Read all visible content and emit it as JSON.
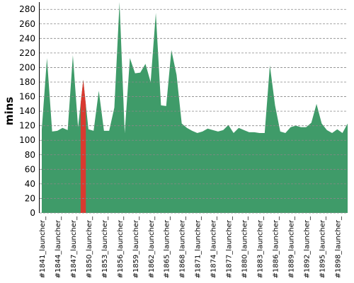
{
  "chart_data": {
    "type": "area",
    "y_label": "mins",
    "categories": [
      "#1841_launcher_",
      null,
      null,
      "#1844_launcher_",
      null,
      null,
      "#1847_launcher_",
      null,
      null,
      "#1850_launcher_",
      null,
      null,
      "#1853_launcher_",
      null,
      null,
      "#1856_launcher_",
      null,
      null,
      "#1859_launcher_",
      null,
      null,
      "#1862_launcher_",
      null,
      null,
      "#1865_launcher_",
      null,
      null,
      "#1868_launcher_",
      null,
      null,
      "#1871_launcher_",
      null,
      null,
      "#1874_launcher_",
      null,
      null,
      "#1877_launcher_",
      null,
      null,
      "#1880_launcher_",
      null,
      null,
      "#1883_launcher_",
      null,
      null,
      "#1886_launcher_",
      null,
      null,
      "#1889_launcher_",
      null,
      null,
      "#1892_launcher_",
      null,
      null,
      "#1895_launcher_",
      null,
      null,
      "#1898_launcher_",
      null,
      null
    ],
    "values": [
      115,
      213,
      112,
      113,
      117,
      114,
      217,
      118,
      183,
      115,
      113,
      168,
      113,
      113,
      145,
      290,
      110,
      213,
      192,
      193,
      205,
      180,
      275,
      148,
      147,
      224,
      190,
      123,
      117,
      113,
      110,
      112,
      116,
      114,
      112,
      114,
      121,
      110,
      117,
      114,
      111,
      111,
      110,
      110,
      203,
      148,
      112,
      110,
      118,
      120,
      118,
      118,
      124,
      150,
      123,
      114,
      110,
      115,
      110,
      123
    ],
    "color": "#3f9b69",
    "highlight_index": 8,
    "highlight_color": "#d93a30",
    "ylim": [
      0,
      288
    ],
    "yticks": [
      0,
      20,
      40,
      60,
      80,
      100,
      120,
      140,
      160,
      180,
      200,
      220,
      240,
      260,
      280
    ],
    "grid": true
  }
}
